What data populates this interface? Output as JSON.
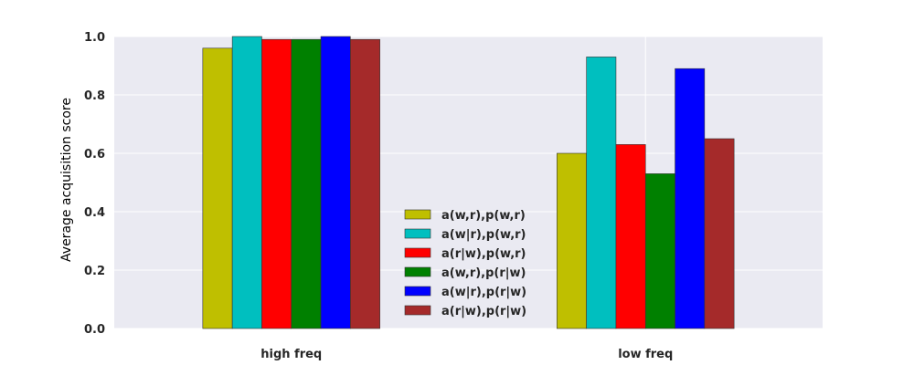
{
  "chart_data": {
    "type": "bar",
    "categories": [
      "high freq",
      "low freq"
    ],
    "series": [
      {
        "name": "a(w,r),p(w,r)",
        "color": "#bfbf00",
        "values": [
          0.96,
          0.6
        ]
      },
      {
        "name": "a(w|r),p(w,r)",
        "color": "#00bfbf",
        "values": [
          1.0,
          0.93
        ]
      },
      {
        "name": "a(r|w),p(w,r)",
        "color": "#ff0000",
        "values": [
          0.99,
          0.63
        ]
      },
      {
        "name": "a(w,r),p(r|w)",
        "color": "#008000",
        "values": [
          0.99,
          0.53
        ]
      },
      {
        "name": "a(w|r),p(r|w)",
        "color": "#0000ff",
        "values": [
          1.0,
          0.89
        ]
      },
      {
        "name": "a(r|w),p(r|w)",
        "color": "#a52a2a",
        "values": [
          0.99,
          0.65
        ]
      }
    ],
    "ylabel": "Average acquisition score",
    "ylim": [
      0.0,
      1.0
    ],
    "yticks": [
      "0.0",
      "0.2",
      "0.4",
      "0.6",
      "0.8",
      "1.0"
    ],
    "grid": true,
    "legend_position": "center"
  }
}
